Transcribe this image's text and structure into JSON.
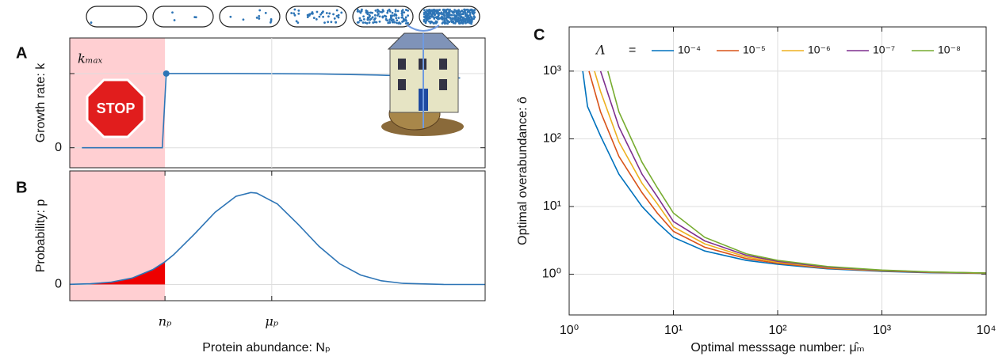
{
  "chart_data": [
    {
      "type": "line",
      "panel": "A",
      "ylabel": "Growth rate: k",
      "log_x": true,
      "xlim": [
        1,
        100000
      ],
      "ylim": [
        -0.27,
        1.48
      ],
      "yticks": [
        0
      ],
      "grid": true,
      "shaded_xlim": [
        1,
        14
      ],
      "shade_color": "#ffcfd2",
      "annotations": [
        {
          "text": "kₘₐₓ",
          "y": 1
        },
        {
          "text": "STOP"
        }
      ],
      "series": [
        {
          "color": "#2e75b6",
          "marker_at": 2,
          "x": [
            1.4,
            13,
            14.5,
            100,
            1000,
            5000,
            20000,
            50000
          ],
          "values": [
            0,
            0,
            1,
            1,
            0.995,
            0.98,
            0.96,
            0.94
          ]
        }
      ]
    },
    {
      "type": "line",
      "panel": "B",
      "ylabel": "Probability: p",
      "xlabel": "Protein abundance: Nₚ",
      "log_x": true,
      "xlim": [
        1,
        100000
      ],
      "ylim": [
        -0.15,
        1.05
      ],
      "yticks": [
        0
      ],
      "grid": true,
      "xticks": [
        {
          "value": 14,
          "label": "nₚ"
        },
        {
          "value": 270,
          "label": "μₚ"
        }
      ],
      "shaded_xlim": [
        1,
        14
      ],
      "shade_color": "#ffcfd2",
      "tail_color": "#ee0000",
      "series": [
        {
          "color": "#2e75b6",
          "x": [
            1,
            1.78,
            3.16,
            5.62,
            10,
            14,
            17.8,
            31.6,
            56.2,
            100,
            151,
            178,
            316,
            562,
            1000,
            1778,
            3162,
            5623,
            10000,
            31623,
            100000
          ],
          "values": [
            0.0017,
            0.0066,
            0.0215,
            0.059,
            0.138,
            0.21,
            0.275,
            0.465,
            0.668,
            0.815,
            0.85,
            0.845,
            0.744,
            0.556,
            0.353,
            0.191,
            0.088,
            0.034,
            0.011,
            0.0008,
            0
          ]
        }
      ]
    },
    {
      "type": "line",
      "panel": "C",
      "xlabel": "Optimal messsage number: μ̂ₘ",
      "ylabel": "Optimal overabundance: ô",
      "log_x": true,
      "log_y": true,
      "xlim": [
        1,
        10000
      ],
      "ylim": [
        0.25,
        4500
      ],
      "grid": true,
      "xticks": [
        {
          "value": 1,
          "label": "10⁰"
        },
        {
          "value": 10,
          "label": "10¹"
        },
        {
          "value": 100,
          "label": "10²"
        },
        {
          "value": 1000,
          "label": "10³"
        },
        {
          "value": 10000,
          "label": "10⁴"
        }
      ],
      "yticks": [
        {
          "value": 1,
          "label": "10⁰"
        },
        {
          "value": 10,
          "label": "10¹"
        },
        {
          "value": 100,
          "label": "10²"
        },
        {
          "value": 1000,
          "label": "10³"
        }
      ],
      "legend_title": "Λ",
      "legend_sep": "=",
      "series": [
        {
          "name": "10⁻⁴",
          "color": "#0072bd",
          "x": [
            1.35,
            1.5,
            2,
            3,
            5,
            7,
            10,
            20,
            50,
            100,
            300,
            1000,
            3000,
            10000
          ],
          "values": [
            1000,
            300,
            110,
            30,
            10,
            5.8,
            3.5,
            2.2,
            1.6,
            1.4,
            1.2,
            1.1,
            1.05,
            1.03
          ]
        },
        {
          "name": "10⁻⁵",
          "color": "#d95319",
          "x": [
            1.55,
            2,
            3,
            5,
            7,
            10,
            20,
            50,
            100,
            300,
            1000,
            3000,
            10000
          ],
          "values": [
            1000,
            250,
            55,
            16,
            8,
            4.3,
            2.5,
            1.7,
            1.45,
            1.22,
            1.12,
            1.06,
            1.03
          ]
        },
        {
          "name": "10⁻⁶",
          "color": "#edb120",
          "x": [
            1.75,
            2,
            3,
            5,
            7,
            10,
            20,
            50,
            100,
            300,
            1000,
            3000,
            10000
          ],
          "values": [
            1000,
            500,
            90,
            22,
            11,
            5,
            2.8,
            1.8,
            1.5,
            1.25,
            1.13,
            1.07,
            1.04
          ]
        },
        {
          "name": "10⁻⁷",
          "color": "#7e2f8e",
          "x": [
            2,
            3,
            5,
            7,
            10,
            20,
            50,
            100,
            300,
            1000,
            3000,
            10000
          ],
          "values": [
            1000,
            150,
            30,
            14,
            6,
            3.1,
            1.9,
            1.55,
            1.27,
            1.14,
            1.07,
            1.04
          ]
        },
        {
          "name": "10⁻⁸",
          "color": "#77ac30",
          "x": [
            2.35,
            3,
            5,
            7,
            10,
            20,
            50,
            100,
            300,
            1000,
            3000,
            10000
          ],
          "values": [
            1000,
            250,
            45,
            19,
            8,
            3.5,
            2.0,
            1.6,
            1.3,
            1.15,
            1.08,
            1.04
          ]
        }
      ]
    }
  ]
}
